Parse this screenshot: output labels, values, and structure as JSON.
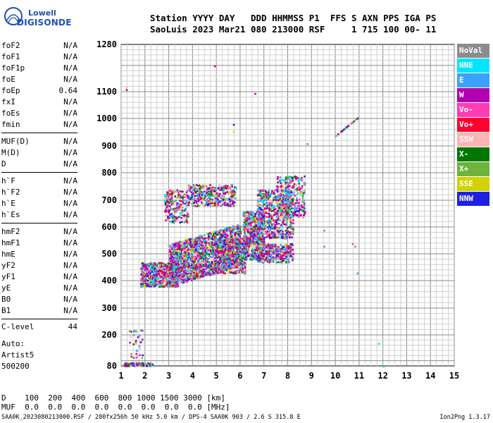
{
  "logo": {
    "line1": "Lowell",
    "line2": "DIGISONDE"
  },
  "header": {
    "line1": "Station YYYY DAY   DDD HHMMSS P1  FFS S AXN PPS IGA PS",
    "line2": "SaoLuis 2023 Mar21 080 213000 RSF     1 715 100 00- 11"
  },
  "params": [
    {
      "name": "foF2",
      "value": "N/A"
    },
    {
      "name": "foF1",
      "value": "N/A"
    },
    {
      "name": "foF1p",
      "value": "N/A"
    },
    {
      "name": "foE",
      "value": "N/A"
    },
    {
      "name": "foEp",
      "value": "0.64"
    },
    {
      "name": "fxI",
      "value": "N/A"
    },
    {
      "name": "foEs",
      "value": "N/A"
    },
    {
      "name": "fmin",
      "value": "N/A"
    },
    {
      "name": "MUF(D)",
      "value": "N/A"
    },
    {
      "name": "M(D)",
      "value": "N/A"
    },
    {
      "name": "D",
      "value": "N/A"
    },
    {
      "name": "h`F",
      "value": "N/A"
    },
    {
      "name": "h`F2",
      "value": "N/A"
    },
    {
      "name": "h`E",
      "value": "N/A"
    },
    {
      "name": "h`Es",
      "value": "N/A"
    },
    {
      "name": "hmF2",
      "value": "N/A"
    },
    {
      "name": "hmF1",
      "value": "N/A"
    },
    {
      "name": "hmE",
      "value": "N/A"
    },
    {
      "name": "yF2",
      "value": "N/A"
    },
    {
      "name": "yF1",
      "value": "N/A"
    },
    {
      "name": "yE",
      "value": "N/A"
    },
    {
      "name": "B0",
      "value": "N/A"
    },
    {
      "name": "B1",
      "value": "N/A"
    }
  ],
  "clevel": {
    "name": "C-level",
    "value": "44"
  },
  "auto": {
    "line1": "Auto:",
    "line2": "Artist5",
    "line3": "500200"
  },
  "legend": [
    {
      "label": "NoVal",
      "color": "#8c8c8c"
    },
    {
      "label": "NNE",
      "color": "#00e5ff"
    },
    {
      "label": "E",
      "color": "#3ca0ff"
    },
    {
      "label": "W",
      "color": "#b000b0"
    },
    {
      "label": "Vo-",
      "color": "#ff3cb4"
    },
    {
      "label": "Vo+",
      "color": "#ff0030"
    },
    {
      "label": "SSW",
      "color": "#ffb4b4"
    },
    {
      "label": "X-",
      "color": "#007800"
    },
    {
      "label": "X+",
      "color": "#6ab43c"
    },
    {
      "label": "SSE",
      "color": "#d2d200"
    },
    {
      "label": "NNW",
      "color": "#2020e0"
    }
  ],
  "dmuf": {
    "line1": "D    100  200  400  600  800 1000 1500 3000 [km]",
    "line2": "MUF  0.0  0.0  0.0  0.0  0.0  0.0  0.0  0.0 [MHz]"
  },
  "footer": {
    "left": "SAA0K_2023080213000.RSF / 280fx256h 50 kHz 5.0 km / DPS-4 SAA0K 903 / 2.6 S 315.8 E",
    "right": "Ion2Png 1.3.17"
  },
  "chart_data": {
    "type": "scatter",
    "xlim": [
      1,
      15
    ],
    "ylim": [
      80,
      1280
    ],
    "xticks": [
      "1",
      "2",
      "3",
      "4",
      "5",
      "6",
      "7",
      "8",
      "9",
      "10",
      "11",
      "12",
      "13",
      "14",
      "15"
    ],
    "yticks": [
      {
        "v": 1280,
        "label": "1280"
      },
      {
        "v": 1100,
        "label": "1100"
      },
      {
        "v": 1000,
        "label": "1000"
      },
      {
        "v": 900,
        "label": "900"
      },
      {
        "v": 800,
        "label": "800"
      },
      {
        "v": 700,
        "label": "700"
      },
      {
        "v": 600,
        "label": "600"
      },
      {
        "v": 500,
        "label": "500"
      },
      {
        "v": 400,
        "label": "400"
      },
      {
        "v": 300,
        "label": "300"
      },
      {
        "v": 200,
        "label": "200"
      },
      {
        "v": 80,
        "label": "80"
      }
    ],
    "grid": true,
    "clusters": [
      {
        "name": "F-trace-low",
        "x": [
          1.8,
          3.4
        ],
        "y": [
          380,
          470
        ],
        "density": 700
      },
      {
        "name": "F-trace-main",
        "x": [
          3.0,
          6.0
        ],
        "y": [
          400,
          560
        ],
        "density": 1800
      },
      {
        "name": "F-trace-mid",
        "x": [
          5.0,
          6.2
        ],
        "y": [
          430,
          560
        ],
        "density": 500
      },
      {
        "name": "upper-W",
        "x": [
          3.8,
          5.8
        ],
        "y": [
          680,
          760
        ],
        "density": 350
      },
      {
        "name": "upper-left",
        "x": [
          2.8,
          3.8
        ],
        "y": [
          620,
          740
        ],
        "density": 220
      },
      {
        "name": "band-6-7",
        "x": [
          6.1,
          7.0
        ],
        "y": [
          480,
          660
        ],
        "density": 600
      },
      {
        "name": "band-7-8-high",
        "x": [
          6.7,
          8.2
        ],
        "y": [
          560,
          740
        ],
        "density": 600
      },
      {
        "name": "band-7-8-low",
        "x": [
          6.7,
          8.2
        ],
        "y": [
          470,
          540
        ],
        "density": 350
      },
      {
        "name": "spread-8",
        "x": [
          7.5,
          8.7
        ],
        "y": [
          640,
          790
        ],
        "density": 300
      },
      {
        "name": "low-echo",
        "x": [
          1.1,
          2.3
        ],
        "y": [
          82,
          95
        ],
        "density": 120
      },
      {
        "name": "low-spike",
        "x": [
          1.3,
          1.9
        ],
        "y": [
          110,
          220
        ],
        "density": 40
      },
      {
        "name": "diagonal-10",
        "x": [
          10.0,
          11.0
        ],
        "y": [
          940,
          1010
        ],
        "density": 30
      }
    ]
  }
}
